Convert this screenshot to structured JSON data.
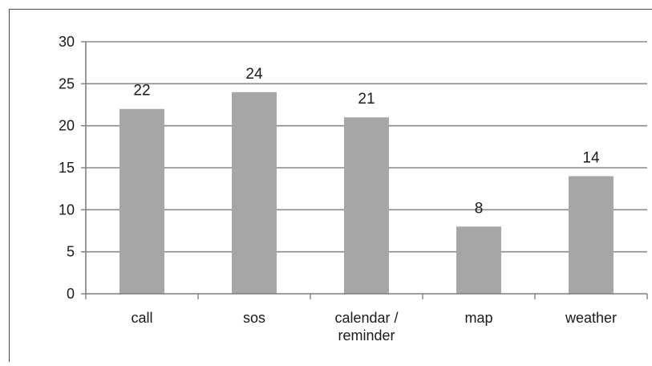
{
  "chart_data": {
    "type": "bar",
    "categories": [
      [
        "call"
      ],
      [
        "sos"
      ],
      [
        "calendar /",
        "reminder"
      ],
      [
        "map"
      ],
      [
        "weather"
      ]
    ],
    "values": [
      22,
      24,
      21,
      8,
      14
    ],
    "data_labels": [
      "22",
      "24",
      "21",
      "8",
      "14"
    ],
    "y_ticks": [
      "0",
      "5",
      "10",
      "15",
      "20",
      "25",
      "30"
    ],
    "ylim": [
      0,
      30
    ],
    "y_step": 5,
    "grid": true,
    "bar_color": "#a6a6a6",
    "grid_color": "#8a8a8a",
    "axis_color": "#7f7f7f",
    "legend": "none"
  }
}
